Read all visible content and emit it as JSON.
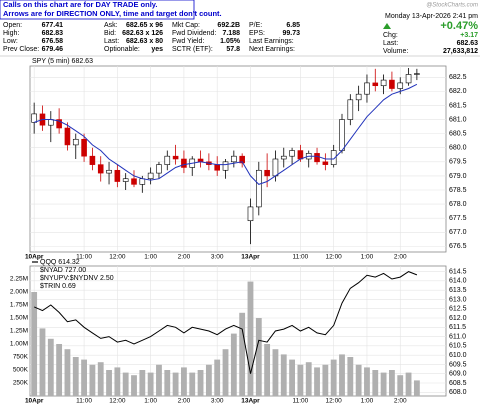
{
  "header": {
    "notice": [
      "Calls on this chart are for DAY TRADE only.",
      "Arrows are for DIRECTION ONLY, time and target don't count."
    ],
    "columns": [
      [
        [
          "Open:",
          677.41
        ],
        [
          "High:",
          682.83
        ],
        [
          "Low:",
          676.58
        ],
        [
          "Prev Close:",
          679.46
        ]
      ],
      [
        [
          "Ask:",
          "682.65 x 96"
        ],
        [
          "Bid:",
          "682.63 x 126"
        ],
        [
          "Last:",
          "682.63 x 80"
        ],
        [
          "Optionable:",
          "yes"
        ]
      ],
      [
        [
          "Mkt Cap:",
          "692.2B"
        ],
        [
          "Fwd Dividend:",
          7.188
        ],
        [
          "Fwd Yield:",
          "1.05%"
        ],
        [
          "SCTR (ETF):",
          57.8
        ]
      ],
      [
        [
          "P/E:",
          6.85
        ],
        [
          "EPS:",
          99.73
        ],
        [
          "Last Earnings:"
        ],
        [
          "Next Earnings:"
        ]
      ]
    ],
    "date": "Monday 13-Apr-2026  2:41 pm",
    "change_pct": "+0.47%",
    "chg": [
      "Chg:",
      "+3.17"
    ],
    "last": [
      "Last:",
      682.63
    ],
    "volume": [
      "Volume:",
      "27,633,812"
    ],
    "watermark": "@StockCharts.com"
  },
  "chart_data": [
    {
      "type": "candlestick",
      "title": "SPY (5 min) 682.63",
      "categories": [
        "10Apr",
        null,
        null,
        null,
        null,
        null,
        "11:00",
        null,
        null,
        null,
        "12:00",
        null,
        null,
        null,
        "1:00",
        null,
        null,
        null,
        "2:00",
        null,
        null,
        null,
        "3:00",
        null,
        null,
        null,
        "13Apr",
        null,
        null,
        null,
        null,
        null,
        "11:00",
        null,
        null,
        null,
        "12:00",
        null,
        null,
        null,
        "1:00",
        null,
        null,
        null,
        "2:00",
        null,
        null
      ],
      "open": [
        680.9,
        681.2,
        680.8,
        681.0,
        680.7,
        680.1,
        680.3,
        679.7,
        679.4,
        679.1,
        679.2,
        678.8,
        678.9,
        678.7,
        678.9,
        679.1,
        679.4,
        679.7,
        679.6,
        679.3,
        679.6,
        679.5,
        679.4,
        679.2,
        679.5,
        679.7,
        677.41,
        677.9,
        679.2,
        679.0,
        679.6,
        679.7,
        679.9,
        679.6,
        679.8,
        679.5,
        679.4,
        679.9,
        681.0,
        681.7,
        681.9,
        682.3,
        682.2,
        682.4,
        682.1,
        682.3,
        682.6
      ],
      "high": [
        681.6,
        681.5,
        681.3,
        681.4,
        680.9,
        680.5,
        680.5,
        680.0,
        679.7,
        679.5,
        679.4,
        679.1,
        679.2,
        679.0,
        679.3,
        679.5,
        679.9,
        680.1,
        679.9,
        679.7,
        679.9,
        679.8,
        679.7,
        679.6,
        679.9,
        679.8,
        678.2,
        679.5,
        679.8,
        679.9,
        680.0,
        680.0,
        680.1,
        679.9,
        680.0,
        679.8,
        680.1,
        681.2,
        681.9,
        682.2,
        682.6,
        682.8,
        682.6,
        682.7,
        682.5,
        682.83,
        682.8
      ],
      "low": [
        680.5,
        680.6,
        680.2,
        680.5,
        679.9,
        679.6,
        679.5,
        679.2,
        678.8,
        678.7,
        678.6,
        678.5,
        678.6,
        678.4,
        678.7,
        678.9,
        679.2,
        679.4,
        679.1,
        679.0,
        679.3,
        679.2,
        679.0,
        678.9,
        679.3,
        679.3,
        676.58,
        677.6,
        678.6,
        678.8,
        679.3,
        679.4,
        679.5,
        679.3,
        679.4,
        679.2,
        679.3,
        679.8,
        680.8,
        681.3,
        681.6,
        682.0,
        681.9,
        682.0,
        681.9,
        682.2,
        682.4
      ],
      "close": [
        681.2,
        680.8,
        681.0,
        680.7,
        680.1,
        680.3,
        679.7,
        679.4,
        679.1,
        679.2,
        678.8,
        678.9,
        678.7,
        678.9,
        679.1,
        679.4,
        679.7,
        679.6,
        679.3,
        679.6,
        679.5,
        679.4,
        679.2,
        679.5,
        679.7,
        679.46,
        677.9,
        679.2,
        679.0,
        679.6,
        679.7,
        679.9,
        679.6,
        679.8,
        679.5,
        679.4,
        679.9,
        681.0,
        681.7,
        681.9,
        682.3,
        682.2,
        682.4,
        682.1,
        682.3,
        682.6,
        682.63
      ],
      "up_color": "#000000",
      "down_color": "#cc0000",
      "series": [
        {
          "color": "#2233bb",
          "values": [
            680.9,
            681.0,
            681.0,
            680.95,
            680.8,
            680.6,
            680.4,
            680.1,
            679.9,
            679.6,
            679.4,
            679.2,
            679.0,
            678.9,
            678.85,
            678.9,
            679.1,
            679.3,
            679.4,
            679.45,
            679.5,
            679.45,
            679.4,
            679.4,
            679.45,
            679.5,
            679.0,
            678.7,
            678.8,
            679.0,
            679.2,
            679.4,
            679.6,
            679.7,
            679.7,
            679.6,
            679.6,
            679.9,
            680.3,
            680.7,
            681.1,
            681.4,
            681.7,
            681.9,
            682.0,
            682.1,
            682.25
          ]
        }
      ],
      "ylim": [
        676.3,
        682.9
      ],
      "yticks": [
        676.5,
        {
          "value": 677,
          "label": "677.0"
        },
        677.5,
        {
          "value": 678,
          "label": "678.0"
        },
        678.5,
        {
          "value": 679,
          "label": "679.0"
        },
        679.5,
        {
          "value": 680,
          "label": "680.0"
        },
        680.5,
        {
          "value": 681,
          "label": "681.0"
        },
        681.5,
        {
          "value": 682,
          "label": "682.0"
        },
        682.5
      ],
      "grid": true
    },
    {
      "type": "line",
      "legend": [
        "$NYAD 727.00",
        "$NYUPV:$NYDNV 2.50",
        "$TRIN 0.69"
      ],
      "categories": [
        "10Apr",
        null,
        null,
        null,
        null,
        null,
        "11:00",
        null,
        null,
        null,
        "12:00",
        null,
        null,
        null,
        "1:00",
        null,
        null,
        null,
        "2:00",
        null,
        null,
        null,
        "3:00",
        null,
        null,
        null,
        "13Apr",
        null,
        null,
        null,
        null,
        null,
        "11:00",
        null,
        null,
        null,
        "12:00",
        null,
        null,
        null,
        "1:00",
        null,
        null,
        null,
        "2:00",
        null,
        null
      ],
      "series": [
        {
          "name": "QQQ 614.32",
          "color": "#000000",
          "values": [
            612.6,
            612.4,
            612.7,
            612.3,
            611.8,
            611.9,
            611.5,
            611.2,
            610.9,
            611.0,
            610.7,
            610.8,
            610.6,
            610.8,
            611.0,
            611.3,
            611.6,
            611.5,
            611.2,
            611.5,
            611.4,
            611.3,
            611.1,
            611.4,
            611.6,
            611.4,
            609.0,
            610.8,
            610.7,
            611.3,
            611.4,
            611.6,
            611.3,
            611.5,
            611.2,
            611.1,
            611.6,
            612.8,
            613.6,
            613.9,
            614.3,
            614.2,
            614.4,
            614.1,
            614.2,
            614.5,
            614.32
          ]
        },
        {
          "type": "bar",
          "axis": "y2",
          "color": "#b0b0b0",
          "values": [
            2000000,
            1300000,
            1100000,
            1000000,
            900000,
            750000,
            700000,
            600000,
            650000,
            500000,
            550000,
            450000,
            400000,
            500000,
            450000,
            600000,
            500000,
            450000,
            550000,
            450000,
            500000,
            600000,
            700000,
            900000,
            1200000,
            1600000,
            2200000,
            1500000,
            1000000,
            900000,
            800000,
            700000,
            600000,
            650000,
            550000,
            600000,
            700000,
            800000,
            750000,
            600000,
            550000,
            500000,
            450000,
            500000,
            400000,
            450000,
            300000
          ]
        }
      ],
      "ylim": [
        607.8,
        614.8
      ],
      "yticks": [
        {
          "value": 608,
          "label": "608.0"
        },
        608.5,
        {
          "value": 609,
          "label": "609.0"
        },
        609.5,
        {
          "value": 610,
          "label": "610.0"
        },
        610.5,
        {
          "value": 611,
          "label": "611.0"
        },
        611.5,
        {
          "value": 612,
          "label": "612.0"
        },
        612.5,
        {
          "value": 613,
          "label": "613.0"
        },
        613.5,
        {
          "value": 614,
          "label": "614.0"
        },
        614.5
      ],
      "y2lim": [
        0,
        2500000
      ],
      "y2ticks": [
        {
          "value": 250000,
          "label": "250K"
        },
        {
          "value": 500000,
          "label": "500K"
        },
        {
          "value": 750000,
          "label": "750K"
        },
        {
          "value": 1000000,
          "label": "1.00M"
        },
        {
          "value": 1250000,
          "label": "1.25M"
        },
        {
          "value": 1500000,
          "label": "1.50M"
        },
        {
          "value": 1750000,
          "label": "1.75M"
        },
        {
          "value": 2000000,
          "label": "2.00M"
        },
        {
          "value": 2250000,
          "label": "2.25M"
        }
      ],
      "grid": true
    }
  ]
}
